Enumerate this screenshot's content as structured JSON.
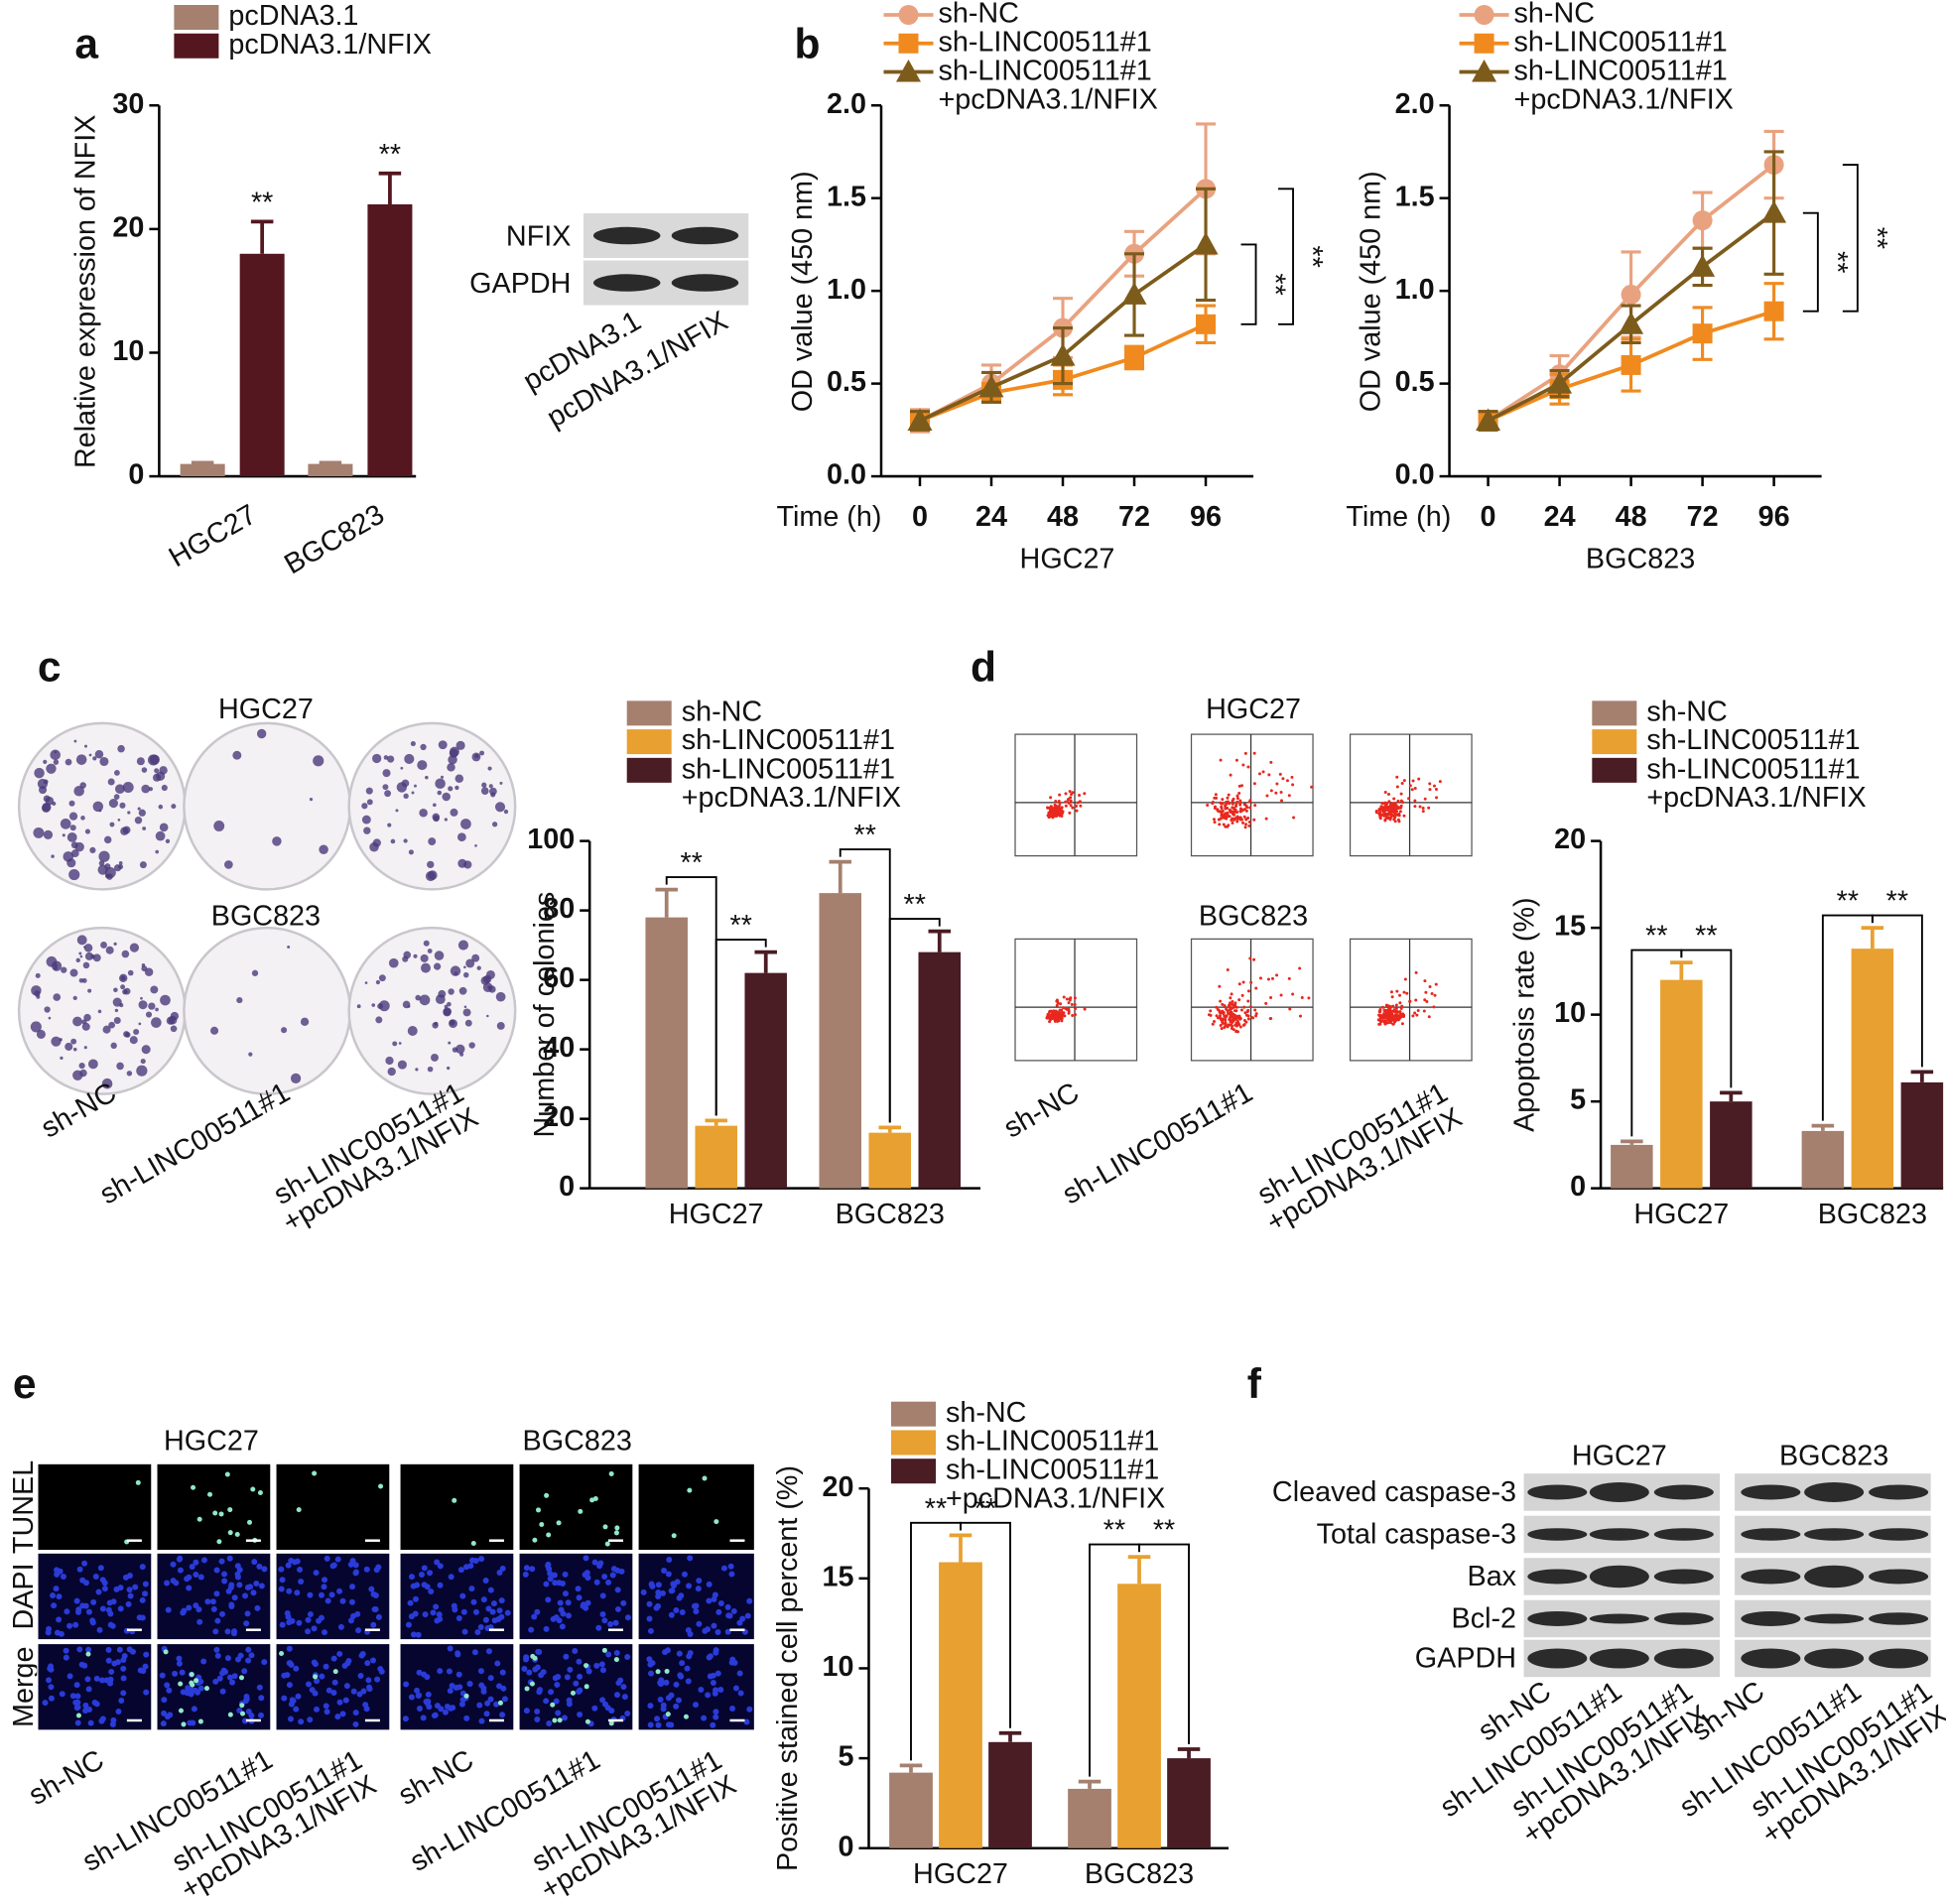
{
  "chart_data": [
    {
      "type": "bar",
      "ylabel": "Relative expression of NFIX",
      "categories": [
        "HGC27",
        "BGC823"
      ],
      "series": [
        {
          "name": "pcDNA3.1",
          "color": "#a5806f",
          "values": [
            1,
            1
          ],
          "errors": [
            0.1,
            0.1
          ]
        },
        {
          "name": "pcDNA3.1/NFIX",
          "color": "#54161f",
          "values": [
            18,
            22
          ],
          "errors": [
            2.6,
            2.5
          ]
        }
      ],
      "ylim": [
        0,
        30
      ],
      "yticks": [
        0,
        10,
        20,
        30
      ],
      "annotations": [
        "**",
        "**"
      ]
    },
    {
      "type": "line",
      "title": "HGC27",
      "xlabel": "Time (h)",
      "ylabel": "OD value (450 nm)",
      "x": [
        0,
        24,
        48,
        72,
        96
      ],
      "xlim": [
        -13,
        112
      ],
      "xticks": [
        0,
        24,
        48,
        72,
        96
      ],
      "ylim": [
        0,
        2
      ],
      "yticks": [
        {
          "value": 0,
          "label": "0.0"
        },
        0.5,
        {
          "value": 1,
          "label": "1.0"
        },
        1.5,
        {
          "value": 2,
          "label": "2.0"
        }
      ],
      "series": [
        {
          "name": "sh-NC",
          "color": "#e9a27f",
          "marker": "circle",
          "values": [
            0.3,
            0.5,
            0.8,
            1.2,
            1.55
          ],
          "errors": [
            0.06,
            0.1,
            0.16,
            0.12,
            0.35
          ]
        },
        {
          "name": "sh-LINC00511#1",
          "color": "#f08a1f",
          "marker": "square",
          "values": [
            0.3,
            0.45,
            0.52,
            0.64,
            0.82
          ],
          "errors": [
            0.05,
            0.05,
            0.08,
            0.06,
            0.1
          ]
        },
        {
          "name": "sh-LINC00511#1 +pcDNA3.1/NFIX",
          "color": "#7d5b1b",
          "marker": "triangle",
          "values": [
            0.3,
            0.48,
            0.65,
            0.98,
            1.25
          ],
          "errors": [
            0.05,
            0.08,
            0.15,
            0.22,
            0.3
          ]
        }
      ],
      "annotations": [
        "**",
        "**"
      ]
    },
    {
      "type": "line",
      "title": "BGC823",
      "xlabel": "Time (h)",
      "ylabel": "OD value (450 nm)",
      "x": [
        0,
        24,
        48,
        72,
        96
      ],
      "xlim": [
        -13,
        112
      ],
      "xticks": [
        0,
        24,
        48,
        72,
        96
      ],
      "ylim": [
        0,
        2
      ],
      "yticks": [
        {
          "value": 0,
          "label": "0.0"
        },
        0.5,
        {
          "value": 1,
          "label": "1.0"
        },
        1.5,
        {
          "value": 2,
          "label": "2.0"
        }
      ],
      "series": [
        {
          "name": "sh-NC",
          "color": "#e9a27f",
          "marker": "circle",
          "values": [
            0.3,
            0.55,
            0.98,
            1.38,
            1.68
          ],
          "errors": [
            0.05,
            0.1,
            0.23,
            0.15,
            0.18
          ]
        },
        {
          "name": "sh-LINC00511#1",
          "color": "#f08a1f",
          "marker": "square",
          "values": [
            0.3,
            0.47,
            0.6,
            0.77,
            0.89
          ],
          "errors": [
            0.05,
            0.08,
            0.14,
            0.14,
            0.15
          ]
        },
        {
          "name": "sh-LINC00511#1 +pcDNA3.1/NFIX",
          "color": "#7d5b1b",
          "marker": "triangle",
          "values": [
            0.3,
            0.5,
            0.82,
            1.13,
            1.42
          ],
          "errors": [
            0.05,
            0.07,
            0.1,
            0.1,
            0.33
          ]
        }
      ],
      "annotations": [
        "**",
        "**"
      ]
    },
    {
      "type": "bar",
      "ylabel": "Number of colonies",
      "categories": [
        "HGC27",
        "BGC823"
      ],
      "series": [
        {
          "name": "sh-NC",
          "color": "#a5806f",
          "values": [
            78,
            85
          ],
          "errors": [
            8,
            9
          ]
        },
        {
          "name": "sh-LINC00511#1",
          "color": "#e8a030",
          "values": [
            18,
            16
          ],
          "errors": [
            1.5,
            1.5
          ]
        },
        {
          "name": "sh-LINC00511#1 +pcDNA3.1/NFIX",
          "color": "#4a1c24",
          "values": [
            62,
            68
          ],
          "errors": [
            6,
            6
          ]
        }
      ],
      "ylim": [
        0,
        100
      ],
      "yticks": [
        0,
        20,
        40,
        60,
        80,
        100
      ],
      "annotations": [
        "**",
        "**",
        "**",
        "**"
      ]
    },
    {
      "type": "bar",
      "ylabel": "Apoptosis rate (%)",
      "categories": [
        "HGC27",
        "BGC823"
      ],
      "series": [
        {
          "name": "sh-NC",
          "color": "#a5806f",
          "values": [
            2.5,
            3.3
          ],
          "errors": [
            0.2,
            0.3
          ]
        },
        {
          "name": "sh-LINC00511#1",
          "color": "#e8a030",
          "values": [
            12,
            13.8
          ],
          "errors": [
            1,
            1.2
          ]
        },
        {
          "name": "sh-LINC00511#1 +pcDNA3.1/NFIX",
          "color": "#4a1c24",
          "values": [
            5,
            6.1
          ],
          "errors": [
            0.5,
            0.6
          ]
        }
      ],
      "ylim": [
        0,
        20
      ],
      "yticks": [
        0,
        5,
        10,
        15,
        20
      ],
      "annotations": [
        "**",
        "**",
        "**",
        "**"
      ]
    },
    {
      "type": "bar",
      "ylabel": "Positive stained cell percent (%)",
      "categories": [
        "HGC27",
        "BGC823"
      ],
      "series": [
        {
          "name": "sh-NC",
          "color": "#a5806f",
          "values": [
            4.2,
            3.3
          ],
          "errors": [
            0.4,
            0.4
          ]
        },
        {
          "name": "sh-LINC00511#1",
          "color": "#e8a030",
          "values": [
            15.9,
            14.7
          ],
          "errors": [
            1.5,
            1.5
          ]
        },
        {
          "name": "sh-LINC00511#1 +pcDNA3.1/NFIX",
          "color": "#4a1c24",
          "values": [
            5.9,
            5
          ],
          "errors": [
            0.5,
            0.5
          ]
        }
      ],
      "ylim": [
        0,
        20
      ],
      "yticks": [
        0,
        5,
        10,
        15,
        20
      ],
      "annotations": [
        "**",
        "**",
        "**",
        "**"
      ]
    }
  ],
  "panels": {
    "labels": [
      "a",
      "b",
      "c",
      "d",
      "e",
      "f"
    ],
    "a_blot": {
      "rows": [
        "NFIX",
        "GAPDH"
      ],
      "lanes": [
        "pcDNA3.1",
        "pcDNA3.1/NFIX"
      ]
    },
    "c_images": {
      "titles": [
        "HGC27",
        "BGC823"
      ],
      "lanes": [
        "sh-NC",
        "sh-LINC00511#1",
        "sh-LINC00511#1 +pcDNA3.1/NFIX"
      ]
    },
    "d_images": {
      "titles": [
        "HGC27",
        "BGC823"
      ],
      "lanes": [
        "sh-NC",
        "sh-LINC00511#1",
        "sh-LINC00511#1 +pcDNA3.1/NFIX"
      ]
    },
    "e_images": {
      "titles": [
        "HGC27",
        "BGC823"
      ],
      "rows": [
        "TUNEL",
        "DAPI",
        "Merge"
      ],
      "lanes": [
        "sh-NC",
        "sh-LINC00511#1",
        "sh-LINC00511#1 +pcDNA3.1/NFIX",
        "sh-NC",
        "sh-LINC00511#1",
        "sh-LINC00511#1 +pcDNA3.1/NFIX"
      ]
    },
    "f_blot": {
      "titles": [
        "HGC27",
        "BGC823"
      ],
      "rows": [
        "Cleaved caspase-3",
        "Total caspase-3",
        "Bax",
        "Bcl-2",
        "GAPDH"
      ],
      "lanes": [
        "sh-NC",
        "sh-LINC00511#1",
        "sh-LINC00511#1 +pcDNA3.1/NFIX",
        "sh-NC",
        "sh-LINC00511#1",
        "sh-LINC00511#1 +pcDNA3.1/NFIX"
      ]
    }
  }
}
